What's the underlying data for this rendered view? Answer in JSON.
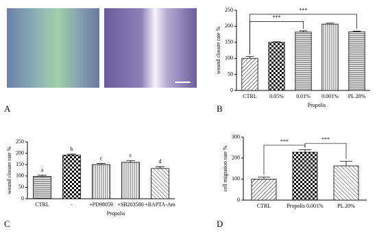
{
  "panel_labels": [
    "A",
    "B",
    "C",
    "D"
  ],
  "chart_data": [
    {
      "type": "bar",
      "y_label": "wound closure rate %",
      "x_label": "Propolis",
      "categories": [
        "CTRL",
        "0.05%",
        "0.01%",
        "0.001%",
        "PL 20%"
      ],
      "values": [
        100,
        150,
        182,
        207,
        183
      ],
      "errors": [
        6,
        2,
        4,
        3,
        2
      ],
      "ylim": [
        0,
        250
      ],
      "yticks": [
        0,
        50,
        100,
        150,
        200,
        250
      ],
      "annotations": [
        "***",
        "***"
      ],
      "color": "#000000"
    },
    {
      "type": "bar",
      "y_label": "wound closure rate %",
      "x_label": "Propolis",
      "categories": [
        "CTRL",
        "-",
        "+PD98059",
        "+SB203580",
        "+BAPTA-Am"
      ],
      "values": [
        98,
        192,
        150,
        160,
        133
      ],
      "errors": [
        5,
        4,
        5,
        8,
        8
      ],
      "ylim": [
        0,
        250
      ],
      "yticks": [
        0,
        50,
        100,
        150,
        200,
        250
      ],
      "annotations": [
        "a",
        "b",
        "c",
        "c",
        "d"
      ],
      "color": "#000000"
    },
    {
      "type": "bar",
      "y_label": "cell migration rate %",
      "categories": [
        "CTRL",
        "Propolis 0.001%",
        "PL 20%"
      ],
      "values": [
        100,
        228,
        163
      ],
      "errors": [
        10,
        12,
        22
      ],
      "ylim": [
        0,
        300
      ],
      "yticks": [
        0,
        100,
        200,
        300
      ],
      "annotations": [
        "***",
        "***"
      ],
      "color": "#000000"
    }
  ]
}
